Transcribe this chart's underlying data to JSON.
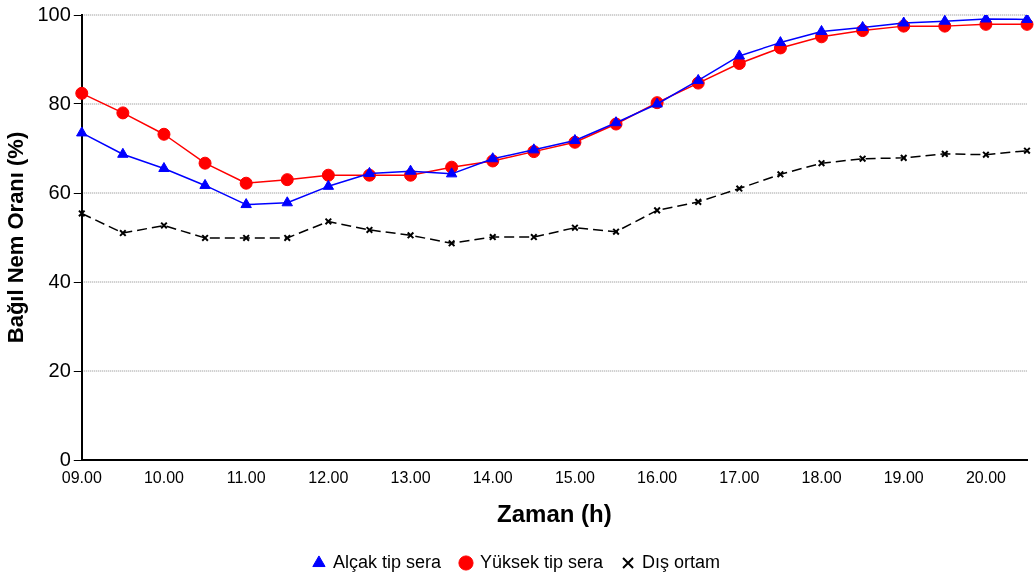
{
  "chart_data": {
    "type": "line",
    "xlabel": "Zaman (h)",
    "ylabel": "Bağıl Nem Oranı (%)",
    "categories": [
      "09.00",
      null,
      "10.00",
      null,
      "11.00",
      null,
      "12.00",
      null,
      "13.00",
      null,
      "14.00",
      null,
      "15.00",
      null,
      "16.00",
      null,
      "17.00",
      null,
      "18.00",
      null,
      "19.00",
      null,
      "20.00",
      null
    ],
    "series": [
      {
        "name": "Alçak tip sera",
        "color": "#0000ff",
        "marker": "triangle",
        "line_style": "solid",
        "values": [
          73.5,
          68.7,
          65.5,
          61.7,
          57.4,
          57.8,
          61.5,
          64.4,
          64.9,
          64.3,
          67.7,
          69.7,
          71.8,
          75.8,
          80.0,
          85.3,
          90.8,
          93.8,
          96.3,
          97.2,
          98.2,
          98.6,
          99.1,
          99.0
        ]
      },
      {
        "name": "Yüksek tip sera",
        "color": "#ff0000",
        "marker": "circle",
        "line_style": "solid",
        "values": [
          82.4,
          78.0,
          73.2,
          66.7,
          62.2,
          63.0,
          64.0,
          64.0,
          64.0,
          65.8,
          67.2,
          69.3,
          71.4,
          75.5,
          80.3,
          84.7,
          89.1,
          92.6,
          95.1,
          96.5,
          97.5,
          97.5,
          97.9,
          97.9
        ]
      },
      {
        "name": "Dış ortam",
        "color": "#000000",
        "marker": "cross",
        "line_style": "dashed",
        "values": [
          55.4,
          51.0,
          52.7,
          49.9,
          49.9,
          49.9,
          53.6,
          51.7,
          50.5,
          48.7,
          50.1,
          50.1,
          52.2,
          51.3,
          56.1,
          58.0,
          61.0,
          64.2,
          66.7,
          67.7,
          67.9,
          68.8,
          68.6,
          69.5
        ]
      }
    ],
    "ylim": [
      0,
      100
    ],
    "yticks": [
      0,
      20,
      40,
      60,
      80,
      100
    ],
    "grid": "y",
    "legend": "bottom"
  }
}
